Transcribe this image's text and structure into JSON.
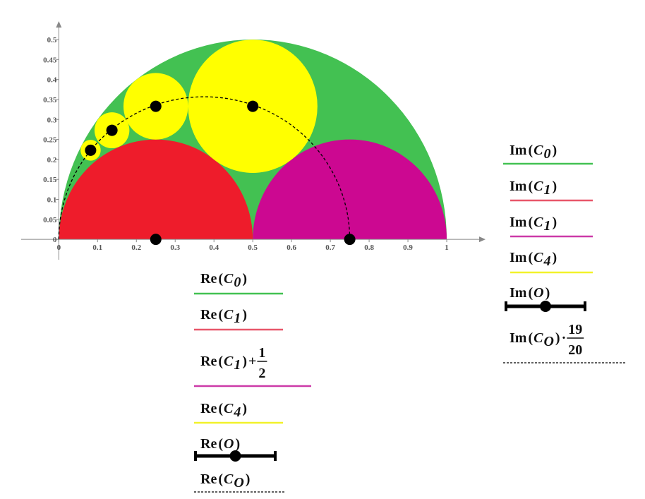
{
  "chart_data": {
    "type": "shapes",
    "xlim": [
      -0.097,
      1.1
    ],
    "ylim": [
      -0.051,
      0.546
    ],
    "xticks": [
      0,
      0.1,
      0.2,
      0.3,
      0.4,
      0.5,
      0.6,
      0.7,
      0.8,
      0.9,
      1
    ],
    "yticks": [
      0,
      0.05,
      0.1,
      0.15,
      0.2,
      0.25,
      0.3,
      0.35,
      0.4,
      0.45,
      0.5
    ],
    "shapes": [
      {
        "kind": "semicircle",
        "cx": 0.5,
        "cy": 0,
        "r": 0.5,
        "color": "#43c152"
      },
      {
        "kind": "semicircle",
        "cx": 0.25,
        "cy": 0,
        "r": 0.25,
        "color": "#ee1c2b"
      },
      {
        "kind": "semicircle",
        "cx": 0.75,
        "cy": 0,
        "r": 0.25,
        "color": "#cc0891"
      },
      {
        "kind": "circle",
        "cx": 0.5,
        "cy": 0.333,
        "r": 0.1667,
        "color": "#ffff00"
      },
      {
        "kind": "circle",
        "cx": 0.25,
        "cy": 0.333,
        "r": 0.0833,
        "color": "#ffff00"
      },
      {
        "kind": "circle",
        "cx": 0.137,
        "cy": 0.273,
        "r": 0.045,
        "color": "#ffff00"
      },
      {
        "kind": "circle",
        "cx": 0.082,
        "cy": 0.223,
        "r": 0.026,
        "color": "#ffff00"
      }
    ],
    "arc": {
      "cx": 0.375,
      "rx": 0.375,
      "ry": 0.357
    },
    "points": {
      "x": [
        0.5,
        0.25,
        0.137,
        0.082,
        0.25,
        0.75
      ],
      "y": [
        0.333,
        0.333,
        0.273,
        0.223,
        0,
        0
      ]
    },
    "x_legend": [
      {
        "tokens": [
          {
            "text": "Re",
            "style": "fn"
          },
          {
            "text": "(",
            "style": "op"
          },
          {
            "text": "C",
            "style": "var"
          },
          {
            "text": "0",
            "style": "sub"
          },
          {
            "text": ")",
            "style": "op"
          }
        ],
        "color": "#43c152",
        "line": "solid"
      },
      {
        "tokens": [
          {
            "text": "Re",
            "style": "fn"
          },
          {
            "text": "(",
            "style": "op"
          },
          {
            "text": "C",
            "style": "var"
          },
          {
            "text": "1",
            "style": "sub"
          },
          {
            "text": ")",
            "style": "op"
          }
        ],
        "color": "#e8566a",
        "line": "solid"
      },
      {
        "tokens": [
          {
            "text": "Re",
            "style": "fn"
          },
          {
            "text": "(",
            "style": "op"
          },
          {
            "text": "C",
            "style": "var"
          },
          {
            "text": "1",
            "style": "sub"
          },
          {
            "text": ")",
            "style": "op"
          },
          {
            "text": "+",
            "style": "op"
          },
          {
            "text": "1",
            "style": "num"
          },
          {
            "text": "2",
            "style": "den"
          }
        ],
        "color": "#cc3aa8",
        "line": "solid"
      },
      {
        "tokens": [
          {
            "text": "Re",
            "style": "fn"
          },
          {
            "text": "(",
            "style": "op"
          },
          {
            "text": "C",
            "style": "var"
          },
          {
            "text": "4",
            "style": "sub"
          },
          {
            "text": ")",
            "style": "op"
          }
        ],
        "color": "#f2f22a",
        "line": "solid"
      },
      {
        "tokens": [
          {
            "text": "Re",
            "style": "fn"
          },
          {
            "text": "(",
            "style": "op"
          },
          {
            "text": "O",
            "style": "var"
          },
          {
            "text": ")",
            "style": "op"
          }
        ],
        "color": "#000000",
        "line": "thick"
      },
      {
        "tokens": [
          {
            "text": "Re",
            "style": "fn"
          },
          {
            "text": "(",
            "style": "op"
          },
          {
            "text": "C",
            "style": "var"
          },
          {
            "text": "O",
            "style": "sub"
          },
          {
            "text": ")",
            "style": "op"
          }
        ],
        "color": "#000000",
        "line": "dashed"
      }
    ],
    "y_legend": [
      {
        "tokens": [
          {
            "text": "Im",
            "style": "fn"
          },
          {
            "text": "(",
            "style": "op"
          },
          {
            "text": "C",
            "style": "var"
          },
          {
            "text": "0",
            "style": "sub"
          },
          {
            "text": ")",
            "style": "op"
          }
        ],
        "color": "#43c152",
        "line": "solid"
      },
      {
        "tokens": [
          {
            "text": "Im",
            "style": "fn"
          },
          {
            "text": "(",
            "style": "op"
          },
          {
            "text": "C",
            "style": "var"
          },
          {
            "text": "1",
            "style": "sub"
          },
          {
            "text": ")",
            "style": "op"
          }
        ],
        "color": "#e8566a",
        "line": "solid"
      },
      {
        "tokens": [
          {
            "text": "Im",
            "style": "fn"
          },
          {
            "text": "(",
            "style": "op"
          },
          {
            "text": "C",
            "style": "var"
          },
          {
            "text": "1",
            "style": "sub"
          },
          {
            "text": ")",
            "style": "op"
          }
        ],
        "color": "#cc3aa8",
        "line": "solid"
      },
      {
        "tokens": [
          {
            "text": "Im",
            "style": "fn"
          },
          {
            "text": "(",
            "style": "op"
          },
          {
            "text": "C",
            "style": "var"
          },
          {
            "text": "4",
            "style": "sub"
          },
          {
            "text": ")",
            "style": "op"
          }
        ],
        "color": "#f2f22a",
        "line": "solid"
      },
      {
        "tokens": [
          {
            "text": "Im",
            "style": "fn"
          },
          {
            "text": "(",
            "style": "op"
          },
          {
            "text": "O",
            "style": "var"
          },
          {
            "text": ")",
            "style": "op"
          }
        ],
        "color": "#000000",
        "line": "thick"
      },
      {
        "tokens": [
          {
            "text": "Im",
            "style": "fn"
          },
          {
            "text": "(",
            "style": "op"
          },
          {
            "text": "C",
            "style": "var"
          },
          {
            "text": "O",
            "style": "sub"
          },
          {
            "text": ")",
            "style": "op"
          },
          {
            "text": "·",
            "style": "op"
          },
          {
            "text": "19",
            "style": "num"
          },
          {
            "text": "20",
            "style": "den"
          }
        ],
        "color": "#000000",
        "line": "dashed"
      }
    ]
  }
}
